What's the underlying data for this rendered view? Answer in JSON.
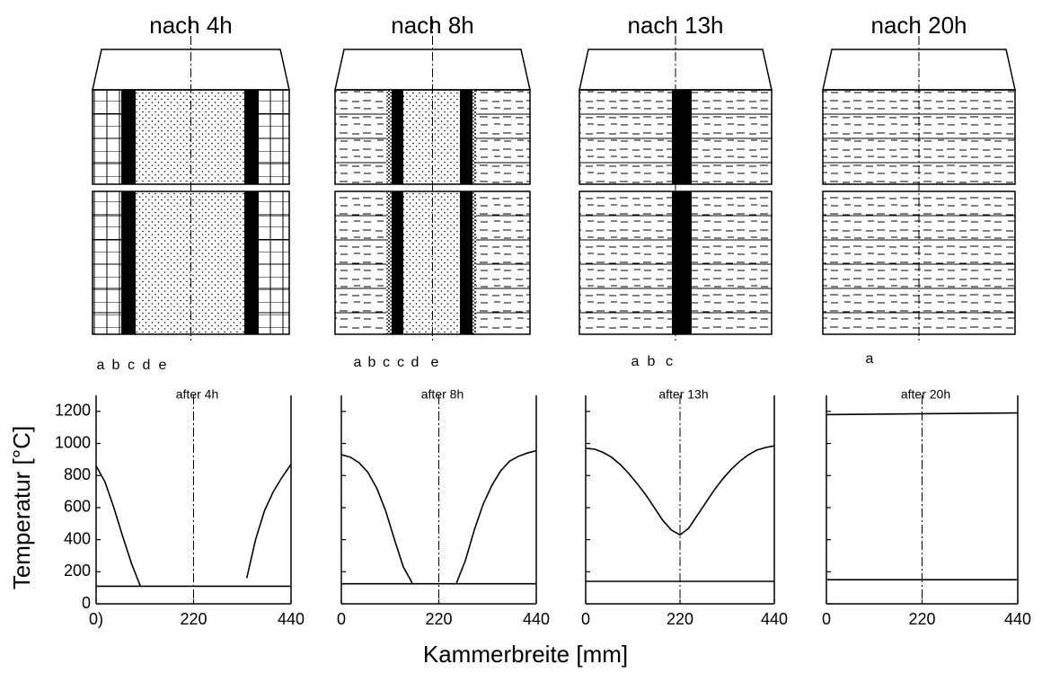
{
  "shared": {
    "ylabel": "Temperatur [°C]",
    "xlabel": "Kammerbreite [mm]"
  },
  "chart_data": [
    {
      "type": "line",
      "title": "nach 4h",
      "subtitle": "after 4h",
      "annotations": [
        "a",
        "b",
        "c",
        "d",
        "e"
      ],
      "xlim": [
        0,
        440
      ],
      "xticks": [
        {
          "value": 0,
          "label": "0)"
        },
        220,
        440
      ],
      "ylim": [
        0,
        1300
      ],
      "yticks": [
        0,
        200,
        400,
        600,
        800,
        1000,
        1200
      ],
      "ytick_labels": true,
      "series": [
        {
          "color": "#000000",
          "x": [
            0,
            20,
            40,
            60,
            80,
            100,
            120,
            340,
            360,
            380,
            400,
            420,
            440
          ],
          "values": [
            860,
            760,
            600,
            420,
            250,
            110,
            null,
            160,
            400,
            580,
            700,
            790,
            870
          ]
        },
        {
          "color": "#000000",
          "x": [
            0,
            440
          ],
          "values": [
            110,
            110
          ]
        }
      ]
    },
    {
      "type": "line",
      "title": "nach 8h",
      "subtitle": "after 8h",
      "annotations": [
        "a",
        "b",
        "c",
        "c",
        "d",
        "e"
      ],
      "xlim": [
        0,
        440
      ],
      "xticks": [
        0,
        220,
        440
      ],
      "ylim": [
        0,
        1300
      ],
      "yticks": [
        0,
        200,
        400,
        600,
        800,
        1000,
        1200
      ],
      "ytick_labels": false,
      "series": [
        {
          "color": "#000000",
          "x": [
            0,
            20,
            40,
            60,
            80,
            100,
            120,
            140,
            160,
            200,
            260,
            280,
            300,
            320,
            340,
            360,
            380,
            400,
            420,
            440
          ],
          "values": [
            930,
            915,
            880,
            820,
            720,
            580,
            400,
            230,
            130,
            null,
            130,
            270,
            460,
            620,
            740,
            830,
            890,
            920,
            940,
            955
          ]
        },
        {
          "color": "#000000",
          "x": [
            0,
            440
          ],
          "values": [
            125,
            125
          ]
        }
      ]
    },
    {
      "type": "line",
      "title": "nach 13h",
      "subtitle": "after 13h",
      "annotations": [
        "a",
        "b",
        "c"
      ],
      "xlim": [
        0,
        440
      ],
      "xticks": [
        0,
        220,
        440
      ],
      "ylim": [
        0,
        1300
      ],
      "yticks": [
        0,
        200,
        400,
        600,
        800,
        1000,
        1200
      ],
      "ytick_labels": false,
      "series": [
        {
          "color": "#000000",
          "x": [
            0,
            20,
            40,
            60,
            80,
            100,
            120,
            140,
            160,
            180,
            200,
            220,
            240,
            260,
            280,
            300,
            320,
            340,
            360,
            380,
            400,
            420,
            440
          ],
          "values": [
            970,
            965,
            945,
            915,
            870,
            815,
            750,
            680,
            600,
            520,
            460,
            430,
            470,
            550,
            630,
            710,
            780,
            840,
            890,
            930,
            960,
            975,
            985
          ]
        },
        {
          "color": "#000000",
          "x": [
            0,
            440
          ],
          "values": [
            140,
            140
          ]
        }
      ]
    },
    {
      "type": "line",
      "title": "nach 20h",
      "subtitle": "after 20h",
      "annotations": [
        "a"
      ],
      "xlim": [
        0,
        440
      ],
      "xticks": [
        0,
        220,
        440
      ],
      "ylim": [
        0,
        1300
      ],
      "yticks": [
        0,
        200,
        400,
        600,
        800,
        1000,
        1200
      ],
      "ytick_labels": false,
      "series": [
        {
          "color": "#000000",
          "x": [
            0,
            440
          ],
          "values": [
            1180,
            1190
          ]
        },
        {
          "color": "#000000",
          "x": [
            0,
            440
          ],
          "values": [
            150,
            150
          ]
        }
      ]
    }
  ]
}
